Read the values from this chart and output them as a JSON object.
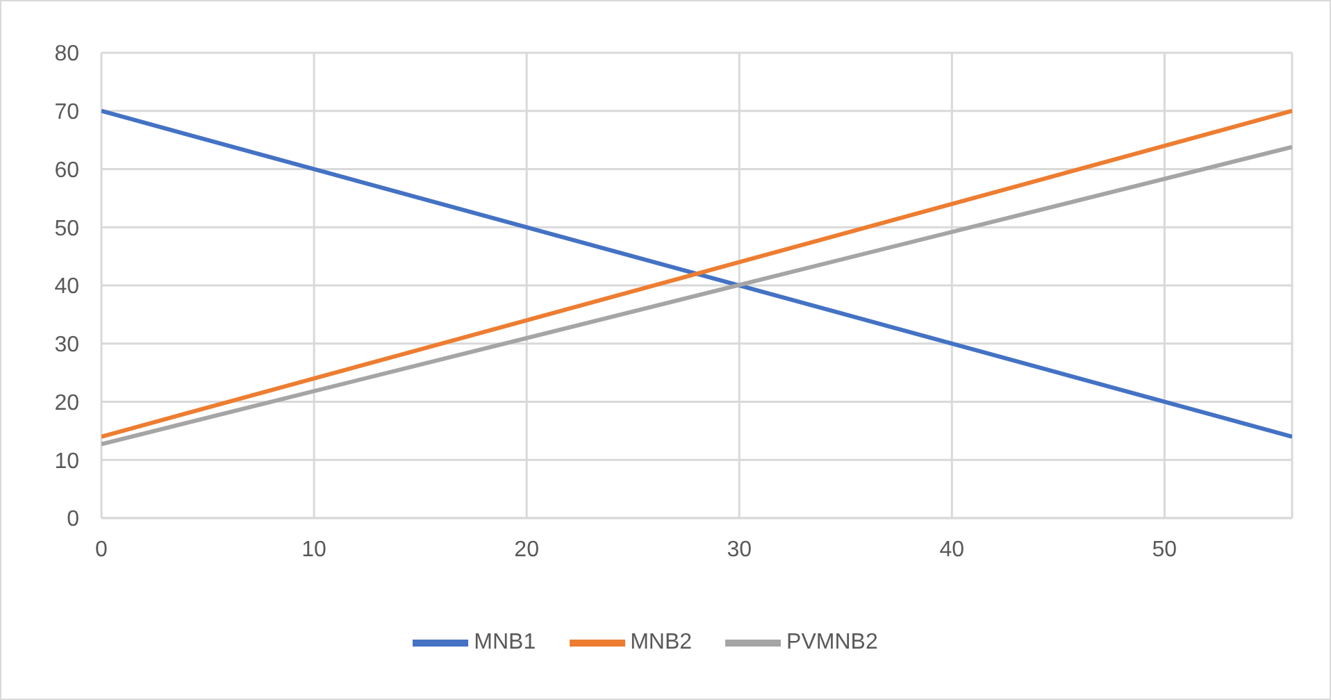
{
  "chart_data": {
    "type": "line",
    "x": [
      0,
      56
    ],
    "series": [
      {
        "name": "MNB1",
        "color": "#4472c4",
        "values": [
          70,
          14
        ]
      },
      {
        "name": "MNB2",
        "color": "#ed7d31",
        "values": [
          14,
          70
        ]
      },
      {
        "name": "PVMNB2",
        "color": "#a5a5a5",
        "values": [
          12.7,
          63.8
        ]
      }
    ],
    "xlim": [
      0,
      56
    ],
    "xticks": [
      0,
      10,
      20,
      30,
      40,
      50
    ],
    "ylim": [
      0,
      80
    ],
    "yticks": [
      0,
      10,
      20,
      30,
      40,
      50,
      60,
      70,
      80
    ],
    "grid": true,
    "legend": "bottom",
    "marker": "none",
    "line_style": "solid"
  }
}
